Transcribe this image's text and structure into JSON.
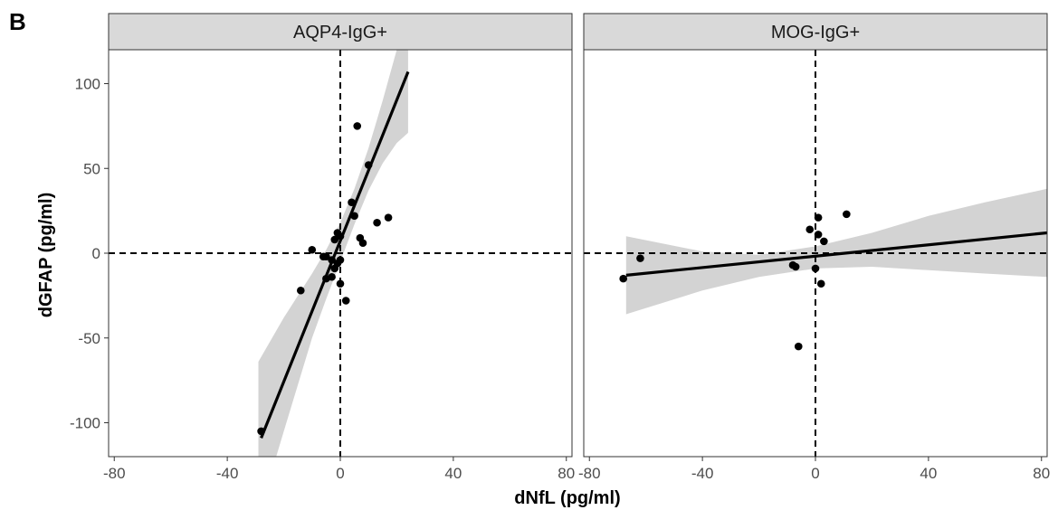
{
  "figure_label": "B",
  "chart_data": {
    "type": "scatter",
    "xlabel": "dNfL (pg/ml)",
    "ylabel": "dGFAP (pg/ml)",
    "xlim": [
      -82,
      82
    ],
    "ylim": [
      -120,
      120
    ],
    "xticks": [
      -80,
      -40,
      0,
      40,
      80
    ],
    "yticks": [
      -100,
      -50,
      0,
      50,
      100
    ],
    "reference_lines": {
      "x": 0,
      "y": 0,
      "style": "dashed"
    },
    "grid": false,
    "colors": {
      "points": "#000000",
      "fit_line": "#000000",
      "confidence_band": "#d3d3d3",
      "strip": "#d9d9d9"
    },
    "panels": [
      {
        "strip_label": "AQP4-IgG+",
        "points": [
          [
            -28,
            -105
          ],
          [
            -14,
            -22
          ],
          [
            -10,
            2
          ],
          [
            -6,
            -2
          ],
          [
            -5,
            -15
          ],
          [
            -5,
            -2
          ],
          [
            -3,
            -4
          ],
          [
            -3,
            -14
          ],
          [
            -2,
            -9
          ],
          [
            -2,
            8
          ],
          [
            -1,
            -6
          ],
          [
            -1,
            12
          ],
          [
            0,
            -18
          ],
          [
            0,
            -4
          ],
          [
            0,
            10
          ],
          [
            2,
            -28
          ],
          [
            4,
            30
          ],
          [
            5,
            22
          ],
          [
            6,
            75
          ],
          [
            7,
            9
          ],
          [
            8,
            6
          ],
          [
            10,
            52
          ],
          [
            13,
            18
          ],
          [
            17,
            21
          ]
        ],
        "fit_line": [
          [
            -28,
            -109
          ],
          [
            24,
            107
          ]
        ],
        "confidence_band": [
          {
            "x": -29,
            "lower": -155,
            "upper": -64
          },
          {
            "x": -20,
            "lower": -105,
            "upper": -38
          },
          {
            "x": -10,
            "lower": -50,
            "upper": -12
          },
          {
            "x": -5,
            "lower": -27,
            "upper": 2
          },
          {
            "x": 0,
            "lower": -5,
            "upper": 18
          },
          {
            "x": 5,
            "lower": 17,
            "upper": 38
          },
          {
            "x": 10,
            "lower": 37,
            "upper": 62
          },
          {
            "x": 15,
            "lower": 53,
            "upper": 90
          },
          {
            "x": 20,
            "lower": 65,
            "upper": 120
          },
          {
            "x": 24,
            "lower": 71,
            "upper": 145
          }
        ]
      },
      {
        "strip_label": "MOG-IgG+",
        "points": [
          [
            -68,
            -15
          ],
          [
            -62,
            -3
          ],
          [
            -8,
            -7
          ],
          [
            -7,
            -8
          ],
          [
            -2,
            14
          ],
          [
            0,
            -9
          ],
          [
            1,
            21
          ],
          [
            1,
            11
          ],
          [
            2,
            -18
          ],
          [
            3,
            7
          ],
          [
            11,
            23
          ],
          [
            -6,
            -55
          ]
        ],
        "fit_line": [
          [
            -67,
            -13
          ],
          [
            82,
            12
          ]
        ],
        "confidence_band": [
          {
            "x": -67,
            "lower": -36,
            "upper": 10
          },
          {
            "x": -40,
            "lower": -22,
            "upper": 1
          },
          {
            "x": -20,
            "lower": -14,
            "upper": -1
          },
          {
            "x": 0,
            "lower": -9,
            "upper": 4
          },
          {
            "x": 20,
            "lower": -8,
            "upper": 12
          },
          {
            "x": 40,
            "lower": -10,
            "upper": 22
          },
          {
            "x": 60,
            "lower": -12,
            "upper": 30
          },
          {
            "x": 82,
            "lower": -14,
            "upper": 38
          }
        ]
      }
    ]
  }
}
